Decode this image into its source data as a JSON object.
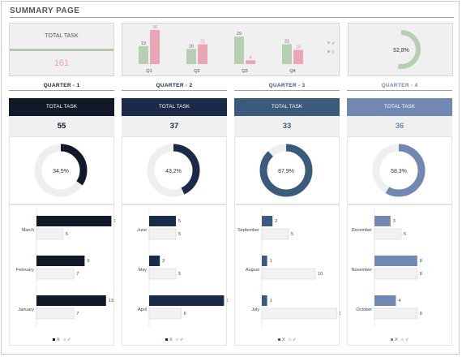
{
  "page": {
    "title": "SUMMARY PAGE"
  },
  "colors": {
    "x_pink": "#eba6b5",
    "check_green": "#b6cfb3",
    "check_gray": "#e8e8e8"
  },
  "total_task": {
    "label": "TOTAL TASK",
    "value": "161"
  },
  "overview_chart": {
    "chart_data": {
      "type": "bar",
      "categories": [
        "Q1",
        "Q2",
        "Q3",
        "Q4"
      ],
      "series": [
        {
          "name": "✓",
          "values": [
            19,
            16,
            29,
            21
          ]
        },
        {
          "name": "X",
          "values": [
            36,
            21,
            4,
            15
          ]
        }
      ],
      "legend_position": "right"
    },
    "legend": [
      "✓",
      "X"
    ]
  },
  "overall_percent": {
    "value": 52.8,
    "label": "52,8%"
  },
  "quarters": [
    {
      "heading": "QUARTER - 1",
      "banner": "TOTAL TASK",
      "total": "55",
      "percent": 34.5,
      "percent_label": "34,5%",
      "color": "#111827",
      "head_color": "#222222",
      "months": [
        {
          "name": "March",
          "x": 14,
          "check": 5
        },
        {
          "name": "February",
          "x": 9,
          "check": 7
        },
        {
          "name": "January",
          "x": 13,
          "check": 7
        }
      ],
      "legend": [
        "X",
        "✓"
      ]
    },
    {
      "heading": "QUARTER - 2",
      "banner": "TOTAL TASK",
      "total": "37",
      "percent": 43.2,
      "percent_label": "43,2%",
      "color": "#1b2a49",
      "head_color": "#1b2a49",
      "months": [
        {
          "name": "June",
          "x": 5,
          "check": 5
        },
        {
          "name": "May",
          "x": 2,
          "check": 5
        },
        {
          "name": "April",
          "x": 14,
          "check": 6
        }
      ],
      "legend": [
        "X",
        "✓"
      ]
    },
    {
      "heading": "QUARTER - 3",
      "banner": "TOTAL TASK",
      "total": "33",
      "percent": 87.9,
      "percent_label": "87,9%",
      "color": "#3b5a7c",
      "head_color": "#3b5a7c",
      "months": [
        {
          "name": "September",
          "x": 2,
          "check": 5
        },
        {
          "name": "August",
          "x": 1,
          "check": 10
        },
        {
          "name": "July",
          "x": 1,
          "check": 14
        }
      ],
      "legend": [
        "X",
        "✓"
      ]
    },
    {
      "heading": "QUARTER - 4",
      "banner": "TOTAL TASK",
      "total": "36",
      "percent": 58.3,
      "percent_label": "58,3%",
      "color": "#7088b2",
      "head_color": "#7088b2",
      "months": [
        {
          "name": "December",
          "x": 3,
          "check": 5
        },
        {
          "name": "November",
          "x": 8,
          "check": 8
        },
        {
          "name": "October",
          "x": 4,
          "check": 8
        }
      ],
      "legend": [
        "X",
        "✓"
      ]
    }
  ]
}
